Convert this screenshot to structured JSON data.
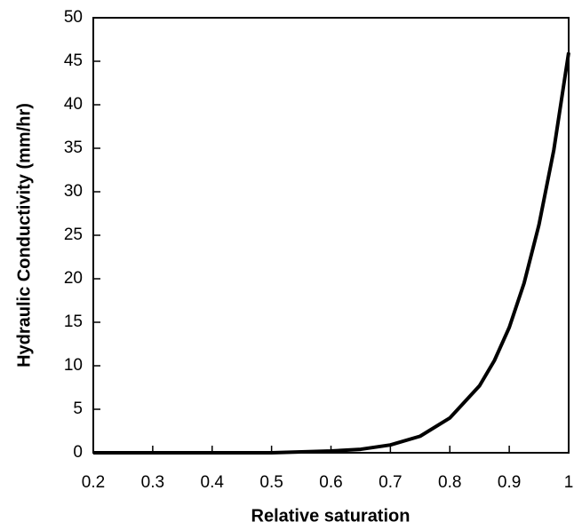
{
  "chart_data": {
    "type": "line",
    "x_label": "Relative saturation",
    "y_label": "Hydraulic Conductivity (mm/hr)",
    "x": [
      0.2,
      0.25,
      0.3,
      0.35,
      0.4,
      0.45,
      0.5,
      0.55,
      0.6,
      0.65,
      0.7,
      0.75,
      0.8,
      0.85,
      0.875,
      0.9,
      0.925,
      0.95,
      0.975,
      1
    ],
    "series": [
      {
        "color": "#000000",
        "values": [
          0,
          0,
          0,
          0,
          0,
          0,
          0,
          0.1,
          0.2,
          0.4,
          0.9,
          1.9,
          4,
          7.7,
          10.6,
          14.4,
          19.5,
          26.2,
          34.8,
          46
        ]
      }
    ],
    "xlim": [
      0.2,
      1
    ],
    "xticks": [
      0.2,
      0.3,
      0.4,
      0.5,
      0.6,
      0.7,
      0.8,
      0.9,
      1
    ],
    "ylim": [
      0,
      50
    ],
    "yticks": [
      0,
      5,
      10,
      15,
      20,
      25,
      30,
      35,
      40,
      45,
      50
    ],
    "grid": false
  }
}
